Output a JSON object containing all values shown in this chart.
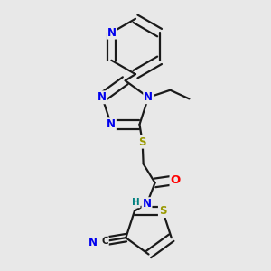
{
  "bg_color": "#e8e8e8",
  "bond_color": "#1a1a1a",
  "bond_width": 1.6,
  "atom_colors": {
    "N": "#0000ee",
    "S": "#999900",
    "O": "#ff0000",
    "H": "#008080",
    "C": "#1a1a1a"
  },
  "font_size": 8.5,
  "figsize": [
    3.0,
    3.0
  ],
  "dpi": 100
}
